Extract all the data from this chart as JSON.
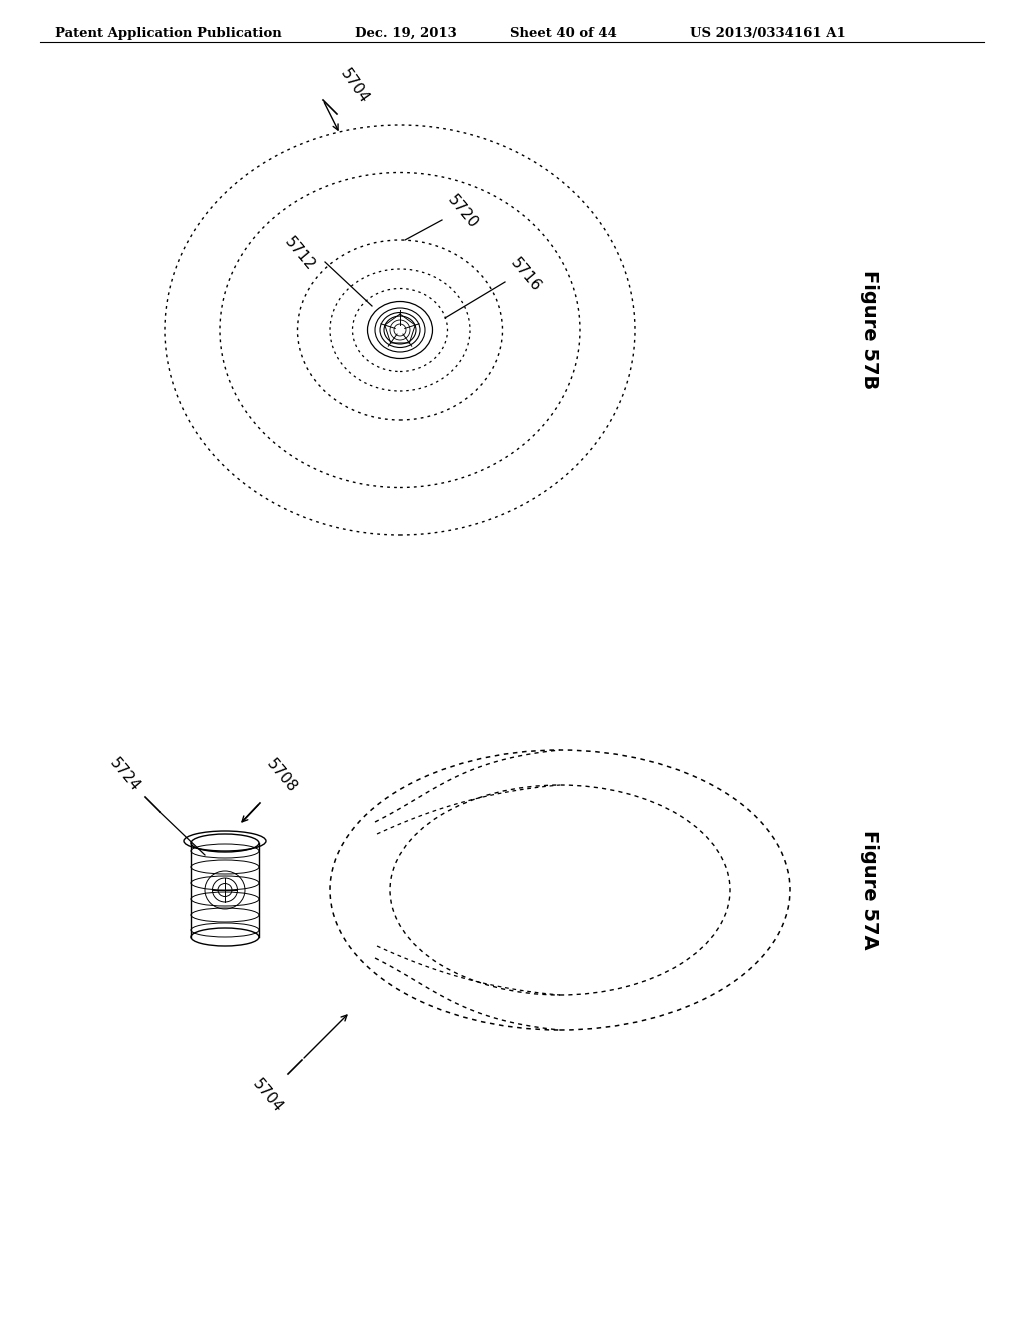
{
  "bg_color": "#ffffff",
  "header_text": "Patent Application Publication",
  "header_date": "Dec. 19, 2013",
  "header_sheet": "Sheet 40 of 44",
  "header_patent": "US 2013/0334161 A1",
  "fig57b_label": "Figure 57B",
  "fig57a_label": "Figure 57A",
  "label_5704_top": "5704",
  "label_5720": "5720",
  "label_5712": "5712",
  "label_5716": "5716",
  "label_5708": "5708",
  "label_5724": "5724",
  "label_5704_bot": "5704"
}
